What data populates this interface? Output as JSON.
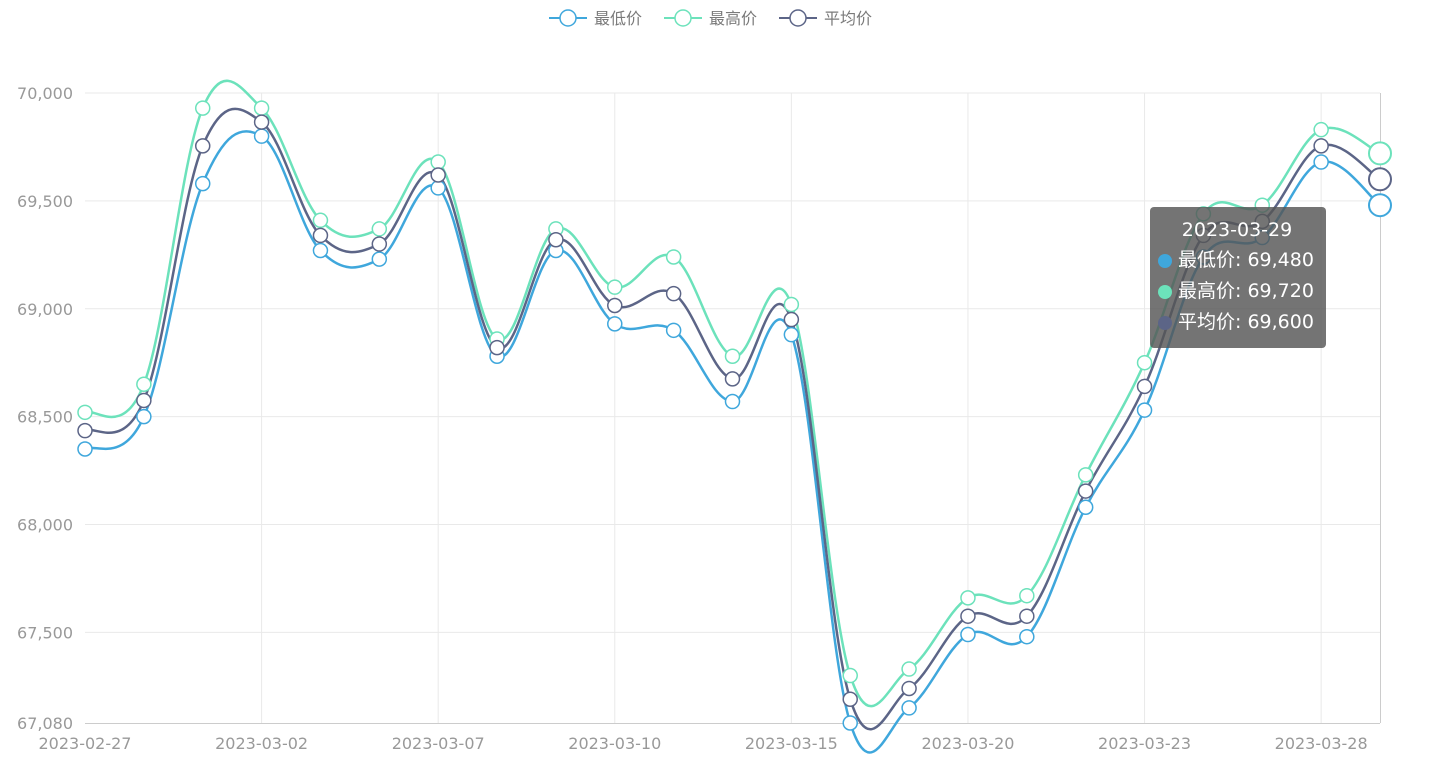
{
  "legend": [
    {
      "label": "最低价",
      "color": "#3fa7dc"
    },
    {
      "label": "最高价",
      "color": "#6ce2bb"
    },
    {
      "label": "平均价",
      "color": "#5c6587"
    }
  ],
  "tooltip": {
    "title": "2023-03-29",
    "rows": [
      {
        "label": "最低价: 69,480",
        "color": "#3fa7dc"
      },
      {
        "label": "最高价: 69,720",
        "color": "#6ce2bb"
      },
      {
        "label": "平均价: 69,600",
        "color": "#5c6587"
      }
    ]
  },
  "chart_data": {
    "type": "line",
    "x": [
      "2023-02-27",
      "2023-02-28",
      "2023-03-01",
      "2023-03-02",
      "2023-03-03",
      "2023-03-06",
      "2023-03-07",
      "2023-03-08",
      "2023-03-09",
      "2023-03-10",
      "2023-03-13",
      "2023-03-14",
      "2023-03-15",
      "2023-03-16",
      "2023-03-17",
      "2023-03-20",
      "2023-03-21",
      "2023-03-22",
      "2023-03-23",
      "2023-03-24",
      "2023-03-27",
      "2023-03-28",
      "2023-03-29"
    ],
    "x_tick_labels": [
      "2023-02-27",
      "2023-03-02",
      "2023-03-07",
      "2023-03-10",
      "2023-03-15",
      "2023-03-20",
      "2023-03-23",
      "2023-03-28"
    ],
    "y_tick_labels": [
      "67,080",
      "67,500",
      "68,000",
      "68,500",
      "69,000",
      "69,500",
      "70,000"
    ],
    "ylim": [
      67080,
      70000
    ],
    "grid": true,
    "legend_position": "top-center",
    "series": [
      {
        "name": "最低价",
        "color": "#3fa7dc",
        "values": [
          68350,
          68500,
          69580,
          69800,
          69270,
          69230,
          69560,
          68780,
          69270,
          68930,
          68900,
          68570,
          68880,
          67080,
          67150,
          67490,
          67480,
          68080,
          68530,
          69240,
          69330,
          69680,
          69480
        ]
      },
      {
        "name": "最高价",
        "color": "#6ce2bb",
        "values": [
          68520,
          68650,
          69930,
          69930,
          69410,
          69370,
          69680,
          68860,
          69370,
          69100,
          69240,
          68780,
          69020,
          67300,
          67330,
          67660,
          67670,
          68230,
          68750,
          69440,
          69480,
          69830,
          69720
        ]
      },
      {
        "name": "平均价",
        "color": "#5c6587",
        "values": [
          68435,
          68575,
          69755,
          69865,
          69340,
          69300,
          69620,
          68820,
          69320,
          69015,
          69070,
          68675,
          68950,
          67190,
          67240,
          67575,
          67575,
          68155,
          68640,
          69340,
          69405,
          69755,
          69600
        ]
      }
    ]
  }
}
